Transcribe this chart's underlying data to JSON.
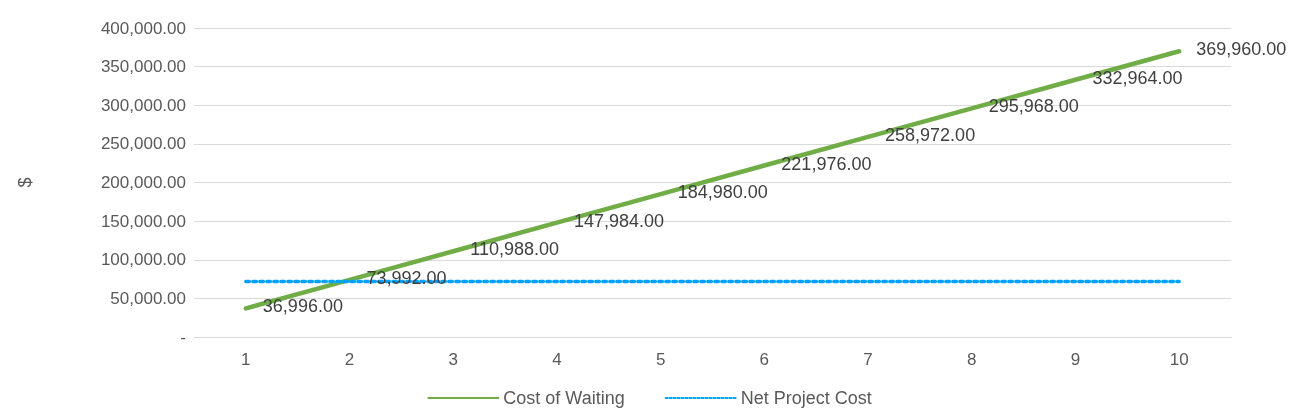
{
  "chart_data": {
    "type": "line",
    "ylabel": "$",
    "categories": [
      "1",
      "2",
      "3",
      "4",
      "5",
      "6",
      "7",
      "8",
      "9",
      "10"
    ],
    "series": [
      {
        "name": "Cost of Waiting",
        "color": "#70ad47",
        "values": [
          36996,
          73992,
          110988,
          147984,
          184980,
          221976,
          258972,
          295968,
          332964,
          369960
        ],
        "line_style": "solid",
        "value_labels": [
          "36,996.00",
          "73,992.00",
          "110,988.00",
          "147,984.00",
          "184,980.00",
          "221,976.00",
          "258,972.00",
          "295,968.00",
          "332,964.00",
          "369,960.00"
        ]
      },
      {
        "name": "Net Project Cost",
        "color": "#00a2ff",
        "values": [
          72000,
          72000,
          72000,
          72000,
          72000,
          72000,
          72000,
          72000,
          72000,
          72000
        ],
        "line_style": "dotted"
      }
    ],
    "ylim": [
      0,
      400000
    ],
    "yticks": [
      {
        "value": 0,
        "label": "-"
      },
      {
        "value": 50000,
        "label": "50,000.00"
      },
      {
        "value": 100000,
        "label": "100,000.00"
      },
      {
        "value": 150000,
        "label": "150,000.00"
      },
      {
        "value": 200000,
        "label": "200,000.00"
      },
      {
        "value": 250000,
        "label": "250,000.00"
      },
      {
        "value": 300000,
        "label": "300,000.00"
      },
      {
        "value": 350000,
        "label": "350,000.00"
      },
      {
        "value": 400000,
        "label": "400,000.00"
      }
    ],
    "grid": "y",
    "legend": "bottom",
    "marker": "none"
  }
}
